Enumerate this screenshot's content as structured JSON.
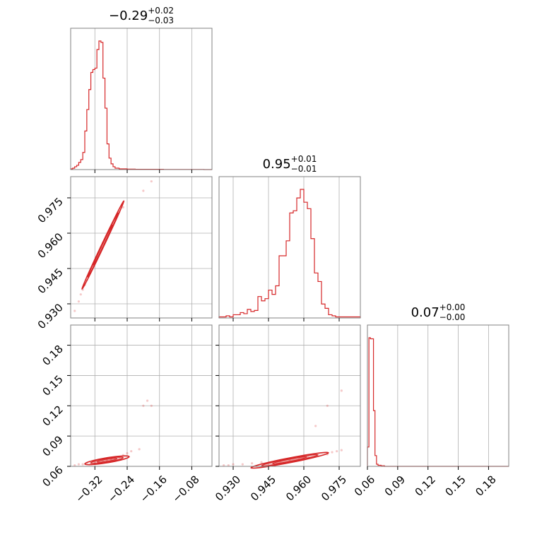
{
  "chart_data": {
    "type": "corner",
    "line_color": "#d62728",
    "grid": true,
    "params": [
      {
        "title_median": "−0.29",
        "title_plus": "+0.02",
        "title_minus": "−0.03",
        "range": [
          -0.38,
          -0.03
        ]
      },
      {
        "title_median": "0.95",
        "title_plus": "+0.01",
        "title_minus": "−0.01",
        "range": [
          0.924,
          0.984
        ]
      },
      {
        "title_median": "0.07",
        "title_plus": "+0.00",
        "title_minus": "−0.00",
        "range": [
          0.06,
          0.2
        ]
      }
    ],
    "ticks": {
      "p0": {
        "values": [
          -0.32,
          -0.24,
          -0.16,
          -0.08
        ],
        "labels": [
          "−0.32",
          "−0.24",
          "−0.16",
          "−0.08"
        ]
      },
      "p1": {
        "values": [
          0.93,
          0.945,
          0.96,
          0.975
        ],
        "labels": [
          "0.930",
          "0.945",
          "0.960",
          "0.975"
        ]
      },
      "p2": {
        "values": [
          0.06,
          0.09,
          0.12,
          0.15,
          0.18
        ],
        "labels": [
          "0.06",
          "0.09",
          "0.12",
          "0.15",
          "0.18"
        ]
      }
    },
    "histograms": [
      {
        "param": 0,
        "x": [
          -0.38,
          -0.375,
          -0.37,
          -0.365,
          -0.36,
          -0.355,
          -0.35,
          -0.345,
          -0.34,
          -0.335,
          -0.33,
          -0.325,
          -0.32,
          -0.315,
          -0.31,
          -0.305,
          -0.3,
          -0.295,
          -0.29,
          -0.285,
          -0.28,
          -0.275,
          -0.27,
          -0.265,
          -0.26,
          -0.255,
          -0.25,
          -0.245,
          -0.24,
          -0.235,
          -0.23,
          -0.22,
          -0.2,
          -0.15,
          -0.1,
          -0.05
        ],
        "counts": [
          0.5,
          1,
          2,
          3,
          5,
          7,
          12,
          27,
          42,
          56,
          68,
          70,
          71,
          84,
          90,
          89,
          64,
          43,
          18,
          8,
          4,
          2,
          1,
          1,
          0.5,
          0.5,
          0.5,
          0.5,
          0.3,
          0.3,
          0.3,
          0.2,
          0.2,
          0.1,
          0.1,
          0
        ]
      },
      {
        "param": 1,
        "x": [
          0.924,
          0.9255,
          0.927,
          0.9285,
          0.93,
          0.9315,
          0.933,
          0.9345,
          0.936,
          0.9375,
          0.939,
          0.9405,
          0.942,
          0.9435,
          0.945,
          0.9465,
          0.948,
          0.9495,
          0.951,
          0.9525,
          0.954,
          0.9555,
          0.957,
          0.9585,
          0.96,
          0.9615,
          0.963,
          0.9645,
          0.966,
          0.9675,
          0.969,
          0.9705,
          0.972,
          0.9735,
          0.975,
          0.9765,
          0.978,
          0.9795,
          0.981,
          0.9825,
          0.984
        ],
        "counts": [
          1,
          1,
          2,
          1,
          3,
          3,
          5,
          4,
          8,
          6,
          7,
          20,
          16,
          18,
          26,
          22,
          30,
          58,
          58,
          72,
          98,
          100,
          112,
          120,
          108,
          102,
          74,
          42,
          34,
          13,
          9,
          3,
          2,
          1,
          1,
          1,
          1,
          1,
          1,
          1,
          0
        ]
      },
      {
        "param": 2,
        "x": [
          0.06,
          0.0615,
          0.063,
          0.0645,
          0.066,
          0.0675,
          0.069,
          0.0705,
          0.072,
          0.0735,
          0.075,
          0.077
        ],
        "counts": [
          18,
          120,
          119,
          119,
          52,
          10,
          2,
          1,
          1,
          0.5,
          0.5,
          0
        ]
      }
    ],
    "scatter": [
      {
        "px": 0,
        "py": 1,
        "x": [
          -0.37,
          -0.36,
          -0.355,
          -0.35,
          -0.345,
          -0.34,
          -0.335,
          -0.33,
          -0.325,
          -0.32,
          -0.315,
          -0.31,
          -0.305,
          -0.3,
          -0.295,
          -0.29,
          -0.285,
          -0.28,
          -0.275,
          -0.27,
          -0.265,
          -0.26,
          -0.25,
          -0.2,
          -0.18
        ],
        "y": [
          0.927,
          0.931,
          0.934,
          0.936,
          0.938,
          0.94,
          0.942,
          0.944,
          0.946,
          0.948,
          0.95,
          0.952,
          0.954,
          0.956,
          0.957,
          0.959,
          0.961,
          0.962,
          0.964,
          0.966,
          0.967,
          0.969,
          0.971,
          0.978,
          0.982
        ]
      },
      {
        "px": 0,
        "py": 2,
        "x": [
          -0.37,
          -0.36,
          -0.35,
          -0.34,
          -0.33,
          -0.32,
          -0.31,
          -0.3,
          -0.29,
          -0.28,
          -0.27,
          -0.26,
          -0.25,
          -0.24,
          -0.23,
          -0.21,
          -0.2,
          -0.19,
          -0.18
        ],
        "y": [
          0.061,
          0.062,
          0.062,
          0.063,
          0.063,
          0.064,
          0.064,
          0.065,
          0.066,
          0.067,
          0.068,
          0.069,
          0.071,
          0.073,
          0.075,
          0.077,
          0.12,
          0.125,
          0.12
        ]
      },
      {
        "px": 1,
        "py": 2,
        "x": [
          0.926,
          0.928,
          0.93,
          0.934,
          0.938,
          0.942,
          0.946,
          0.95,
          0.954,
          0.958,
          0.962,
          0.966,
          0.97,
          0.972,
          0.974,
          0.976,
          0.97,
          0.965,
          0.976
        ],
        "y": [
          0.061,
          0.061,
          0.062,
          0.062,
          0.063,
          0.064,
          0.064,
          0.065,
          0.066,
          0.067,
          0.069,
          0.071,
          0.072,
          0.074,
          0.075,
          0.076,
          0.12,
          0.1,
          0.135
        ]
      }
    ],
    "contours": [
      {
        "px": 0,
        "py": 1,
        "center": [
          -0.3,
          0.955
        ],
        "slope": 0.36,
        "half_len": [
          0.055,
          0.04,
          0.025
        ],
        "half_width": [
          0.0012,
          0.0009,
          0.0006
        ]
      },
      {
        "px": 0,
        "py": 2,
        "center": [
          -0.29,
          0.066
        ],
        "slope": 0.065,
        "half_len": [
          0.055,
          0.04,
          0.025
        ],
        "half_width": [
          0.0025,
          0.0018,
          0.0011
        ]
      },
      {
        "px": 1,
        "py": 2,
        "center": [
          0.954,
          0.066
        ],
        "slope": 0.45,
        "half_len": [
          0.018,
          0.013,
          0.008
        ],
        "half_width": [
          0.0022,
          0.0016,
          0.001
        ]
      }
    ]
  }
}
